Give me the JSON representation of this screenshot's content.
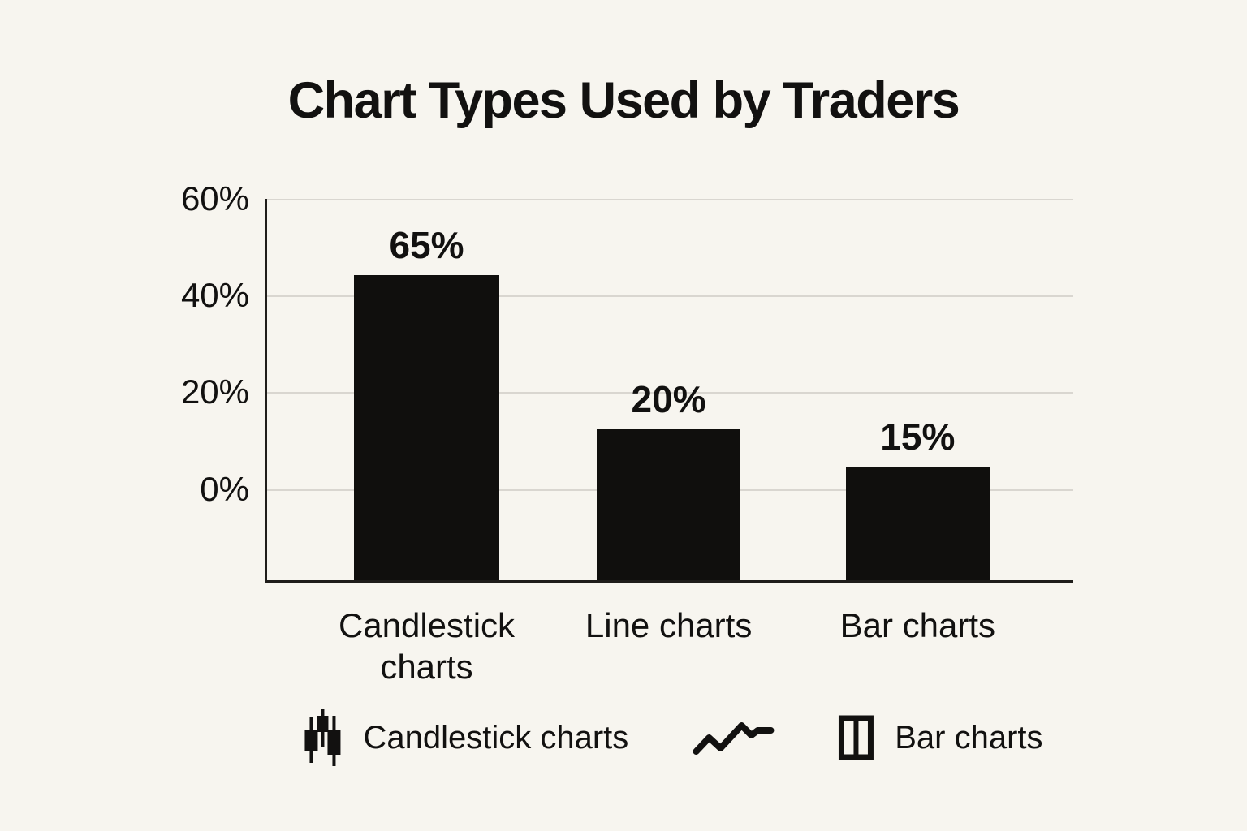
{
  "title": "Chart Types Used by Traders",
  "legend": {
    "items": [
      {
        "icon": "candlestick-icon",
        "label": "Candlestick charts"
      },
      {
        "icon": "line-icon",
        "label": ""
      },
      {
        "icon": "bar-icon",
        "label": "Bar charts"
      }
    ]
  },
  "colors": {
    "background": "#f7f5ef",
    "bar": "#100f0d",
    "gridline": "#d9d6d0",
    "axis": "#1f1d1a",
    "text": "#121110"
  },
  "chart_data": {
    "type": "bar",
    "title": "Chart Types Used by Traders",
    "categories": [
      "Candlestick charts",
      "Line charts",
      "Bar charts"
    ],
    "values": [
      65,
      20,
      15
    ],
    "data_labels": [
      "65%",
      "20%",
      "15%"
    ],
    "xlabel": "",
    "ylabel": "",
    "y_ticks": [
      "60%",
      "40%",
      "20%",
      "0%"
    ],
    "ylim": [
      0,
      60
    ],
    "grid": true,
    "legend_position": "bottom",
    "draw": {
      "note": "pixel-faithful geometry: gridline offsets and bar boxes as fractions of plot area; bars are drawn shorter than labeled values in the source image",
      "ticks_pos": [
        0.0,
        0.2537,
        0.5074,
        0.7611
      ],
      "bars": [
        {
          "left": 0.1074,
          "width": 0.181,
          "height": 0.801
        },
        {
          "left": 0.4086,
          "width": 0.179,
          "height": 0.395
        },
        {
          "left": 0.718,
          "width": 0.178,
          "height": 0.298
        }
      ]
    }
  }
}
